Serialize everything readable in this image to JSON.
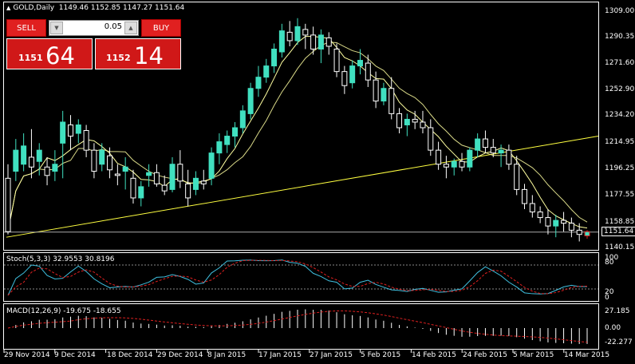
{
  "header": {
    "symbol_label": "GOLD,Daily",
    "open": "1149.46",
    "high": "1152.85",
    "low": "1147.27",
    "close": "1151.64"
  },
  "trade_panel": {
    "sell_label": "SELL",
    "buy_label": "BUY",
    "lot_value": "0.05",
    "sell_big": "64",
    "sell_small": "1151",
    "buy_big": "14",
    "buy_small": "1152"
  },
  "price_scale": [
    "1309.00",
    "1290.35",
    "1271.60",
    "1252.90",
    "1234.20",
    "1214.95",
    "1196.25",
    "1177.55",
    "1158.85",
    "1140.15"
  ],
  "current_price": "1151.64",
  "stoch": {
    "label": "Stoch(5,3,3) 32.9553 30.8196",
    "levels": [
      "100",
      "80",
      "20",
      "0"
    ]
  },
  "macd": {
    "label": "MACD(12,26,9) -19.675 -18.655",
    "levels": [
      "27.185",
      "0.00",
      "-22.277"
    ]
  },
  "time_axis": [
    "29 Nov 2014",
    "9 Dec 2014",
    "18 Dec 2014",
    "29 Dec 2014",
    "8 Jan 2015",
    "17 Jan 2015",
    "27 Jan 2015",
    "5 Feb 2015",
    "14 Feb 2015",
    "24 Feb 2015",
    "5 Mar 2015",
    "14 Mar 2015"
  ],
  "colors": {
    "bull": "#40e0c0",
    "bear": "#ffffff",
    "bear_latest": "#e02020",
    "ma": "#ffffa0",
    "trendline": "#ffff40",
    "stoch_main": "#40c0e0",
    "stoch_signal": "#e02020",
    "macd_hist": "#ffffff",
    "macd_signal": "#e02020"
  },
  "chart_data": {
    "type": "candlestick",
    "ylim": [
      1140.15,
      1309.0
    ],
    "candles": [
      [
        1190,
        1200,
        1150,
        1152
      ],
      [
        1195,
        1218,
        1188,
        1210
      ],
      [
        1200,
        1222,
        1195,
        1213
      ],
      [
        1205,
        1225,
        1190,
        1198
      ],
      [
        1202,
        1215,
        1192,
        1210
      ],
      [
        1198,
        1205,
        1185,
        1192
      ],
      [
        1195,
        1210,
        1188,
        1200
      ],
      [
        1215,
        1238,
        1190,
        1230
      ],
      [
        1228,
        1235,
        1210,
        1220
      ],
      [
        1222,
        1232,
        1215,
        1228
      ],
      [
        1224,
        1228,
        1205,
        1210
      ],
      [
        1210,
        1215,
        1190,
        1195
      ],
      [
        1200,
        1215,
        1195,
        1210
      ],
      [
        1206,
        1212,
        1190,
        1196
      ],
      [
        1193,
        1200,
        1185,
        1192
      ],
      [
        1195,
        1205,
        1182,
        1198
      ],
      [
        1190,
        1196,
        1172,
        1176
      ],
      [
        1176,
        1188,
        1170,
        1184
      ],
      [
        1192,
        1200,
        1184,
        1194
      ],
      [
        1194,
        1200,
        1184,
        1186
      ],
      [
        1185,
        1192,
        1178,
        1181
      ],
      [
        1182,
        1205,
        1180,
        1200
      ],
      [
        1200,
        1210,
        1183,
        1188
      ],
      [
        1186,
        1196,
        1170,
        1176
      ],
      [
        1182,
        1195,
        1178,
        1190
      ],
      [
        1188,
        1196,
        1182,
        1186
      ],
      [
        1190,
        1212,
        1185,
        1208
      ],
      [
        1208,
        1222,
        1200,
        1216
      ],
      [
        1214,
        1224,
        1208,
        1220
      ],
      [
        1220,
        1230,
        1212,
        1226
      ],
      [
        1226,
        1242,
        1222,
        1238
      ],
      [
        1236,
        1258,
        1232,
        1254
      ],
      [
        1254,
        1270,
        1248,
        1262
      ],
      [
        1262,
        1275,
        1258,
        1270
      ],
      [
        1270,
        1286,
        1265,
        1282
      ],
      [
        1280,
        1300,
        1276,
        1295
      ],
      [
        1294,
        1302,
        1284,
        1288
      ],
      [
        1288,
        1304,
        1285,
        1298
      ],
      [
        1296,
        1300,
        1282,
        1292
      ],
      [
        1292,
        1298,
        1278,
        1282
      ],
      [
        1282,
        1296,
        1272,
        1292
      ],
      [
        1290,
        1294,
        1278,
        1284
      ],
      [
        1282,
        1286,
        1262,
        1266
      ],
      [
        1266,
        1270,
        1250,
        1256
      ],
      [
        1258,
        1274,
        1254,
        1270
      ],
      [
        1270,
        1282,
        1264,
        1274
      ],
      [
        1272,
        1278,
        1255,
        1260
      ],
      [
        1260,
        1266,
        1240,
        1245
      ],
      [
        1245,
        1258,
        1242,
        1254
      ],
      [
        1254,
        1262,
        1232,
        1236
      ],
      [
        1236,
        1240,
        1222,
        1226
      ],
      [
        1228,
        1236,
        1220,
        1232
      ],
      [
        1232,
        1238,
        1225,
        1230
      ],
      [
        1230,
        1238,
        1222,
        1226
      ],
      [
        1226,
        1232,
        1206,
        1210
      ],
      [
        1210,
        1216,
        1196,
        1200
      ],
      [
        1200,
        1206,
        1190,
        1198
      ],
      [
        1198,
        1204,
        1192,
        1202
      ],
      [
        1202,
        1208,
        1195,
        1198
      ],
      [
        1198,
        1212,
        1195,
        1210
      ],
      [
        1210,
        1222,
        1205,
        1218
      ],
      [
        1218,
        1224,
        1208,
        1212
      ],
      [
        1212,
        1218,
        1205,
        1208
      ],
      [
        1208,
        1214,
        1198,
        1210
      ],
      [
        1210,
        1214,
        1196,
        1200
      ],
      [
        1200,
        1206,
        1178,
        1182
      ],
      [
        1182,
        1186,
        1168,
        1172
      ],
      [
        1172,
        1178,
        1162,
        1166
      ],
      [
        1166,
        1170,
        1158,
        1162
      ],
      [
        1162,
        1168,
        1150,
        1156
      ],
      [
        1156,
        1164,
        1148,
        1160
      ],
      [
        1160,
        1166,
        1152,
        1158
      ],
      [
        1158,
        1162,
        1148,
        1153
      ],
      [
        1153,
        1158,
        1145,
        1150
      ],
      [
        1149,
        1153,
        1147,
        1152
      ]
    ]
  }
}
